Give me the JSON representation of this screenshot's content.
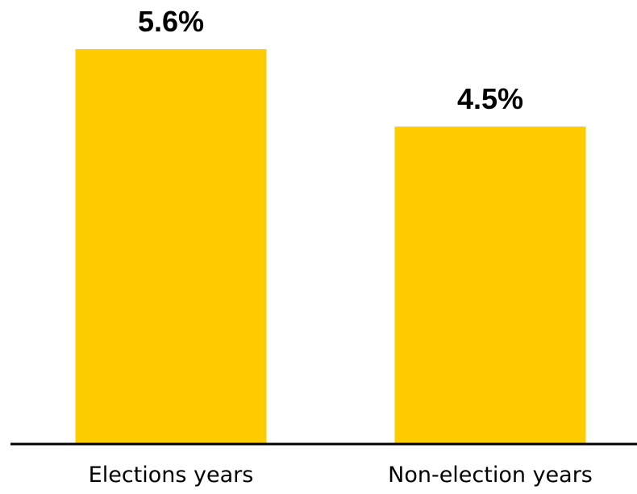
{
  "chart_data": {
    "type": "bar",
    "categories": [
      "Elections years",
      "Non-election years"
    ],
    "values": [
      5.6,
      4.5
    ],
    "value_labels": [
      "5.6%",
      "4.5%"
    ],
    "unit": "%",
    "ylim": [
      0,
      5.6
    ],
    "grid": false,
    "legend": "none",
    "bar_color": "#FFCC00",
    "baseline_color": "#000000"
  }
}
